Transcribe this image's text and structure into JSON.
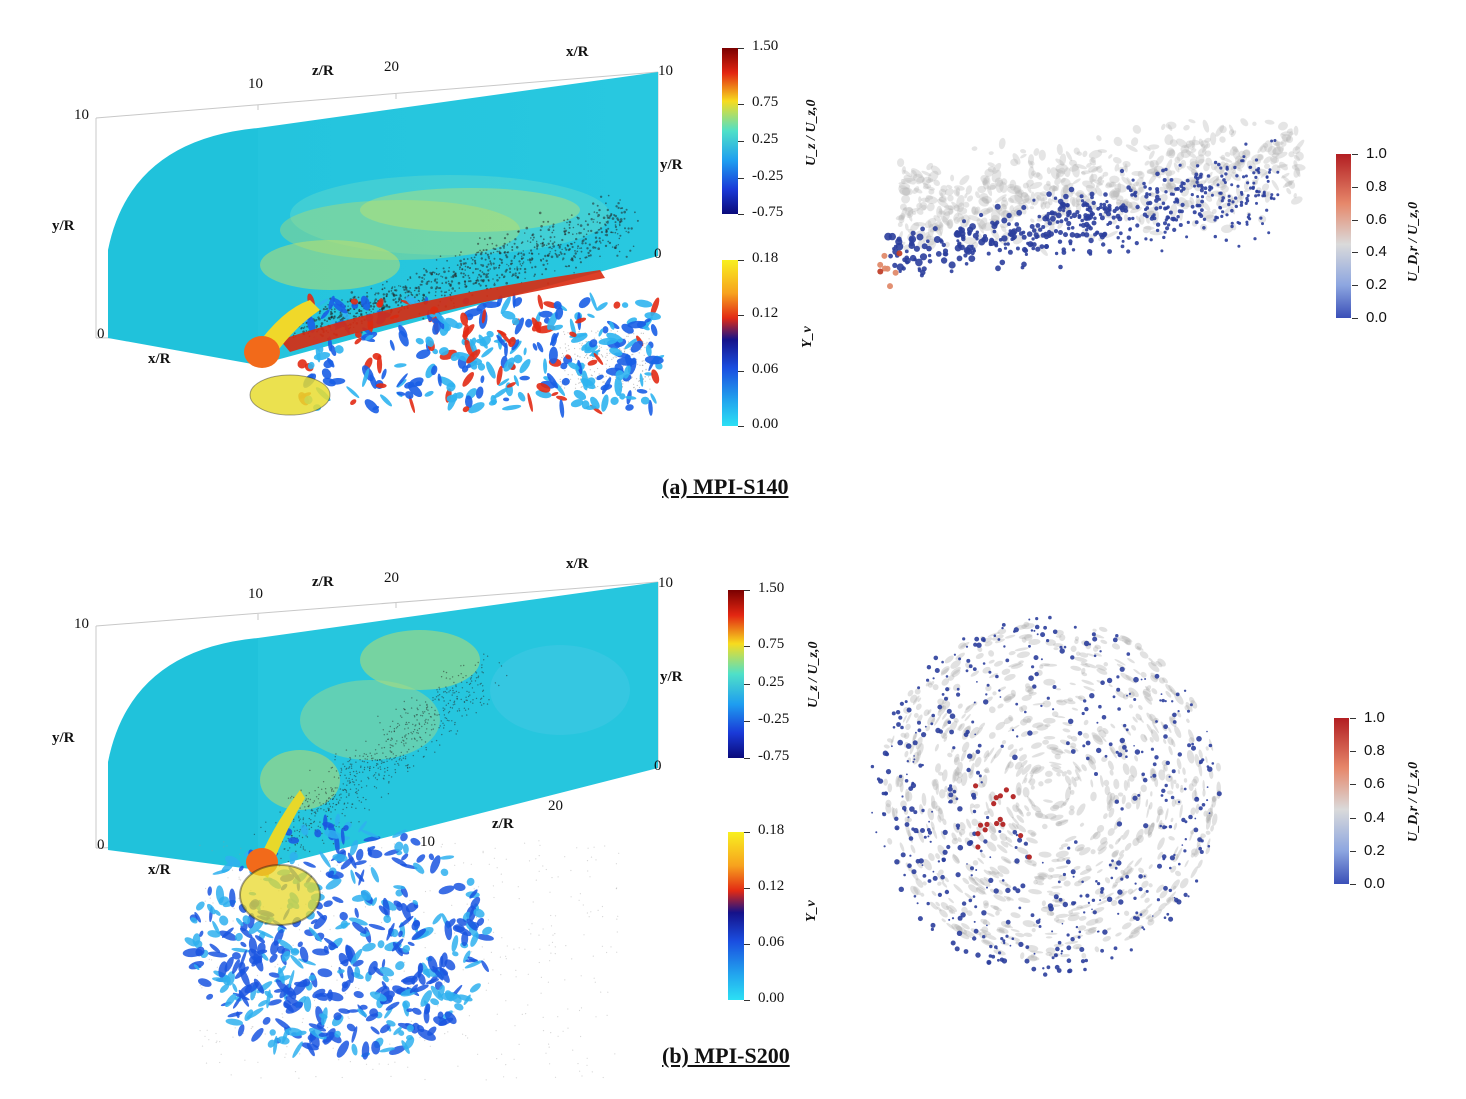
{
  "panels": [
    {
      "caption": "(a) MPI-S140",
      "axes": {
        "zR_label": "z/R",
        "xR_label_top": "x/R",
        "yR_label_left": "y/R",
        "yR_label_right": "y/R",
        "xR_label_bottom": "x/R",
        "tick_10_top": "10",
        "tick_20_top": "20",
        "tick_10_right_top": "10",
        "tick_10_left": "10",
        "tick_0_left": "0",
        "tick_0_right": "0"
      },
      "velocity_colorbar": {
        "title": "U_z / U_z,0",
        "ticks": [
          "1.50",
          "0.75",
          "0.25",
          "-0.25",
          "-0.75"
        ]
      },
      "vapor_colorbar": {
        "title": "Y_v",
        "ticks": [
          "0.18",
          "0.12",
          "0.06",
          "0.00"
        ]
      },
      "droplet_colorbar": {
        "title": "U_D,r / U_z,0",
        "ticks": [
          "1.0",
          "0.8",
          "0.6",
          "0.4",
          "0.2",
          "0.0"
        ]
      }
    },
    {
      "caption": "(b) MPI-S200",
      "axes": {
        "zR_label": "z/R",
        "xR_label_top": "x/R",
        "yR_label_left": "y/R",
        "yR_label_right": "y/R",
        "xR_label_bottom": "x/R",
        "tick_10_top": "10",
        "tick_20_top": "20",
        "tick_10_right_top": "10",
        "tick_10_left": "10",
        "tick_0_left": "0",
        "tick_0_right": "0",
        "zR_label_inner": "z/R",
        "tick_20_inner": "20",
        "tick_10_inner": "10"
      },
      "velocity_colorbar": {
        "title": "U_z / U_z,0",
        "ticks": [
          "1.50",
          "0.75",
          "0.25",
          "-0.25",
          "-0.75"
        ]
      },
      "vapor_colorbar": {
        "title": "Y_v",
        "ticks": [
          "0.18",
          "0.12",
          "0.06",
          "0.00"
        ]
      },
      "droplet_colorbar": {
        "title": "U_D,r / U_z,0",
        "ticks": [
          "1.0",
          "0.8",
          "0.6",
          "0.4",
          "0.2",
          "0.0"
        ]
      }
    }
  ],
  "colors": {
    "field_cyan": "#22c6dc",
    "field_cyan_edge": "#1fb9d0",
    "droplet_blue": "#2b3e9c",
    "droplet_red": "#b22222",
    "spray_gray": "#9a9a9a",
    "vapor_yellow": "#f5e02a",
    "iso_blue": "#2a7ee0",
    "iso_red": "#d82a10"
  }
}
